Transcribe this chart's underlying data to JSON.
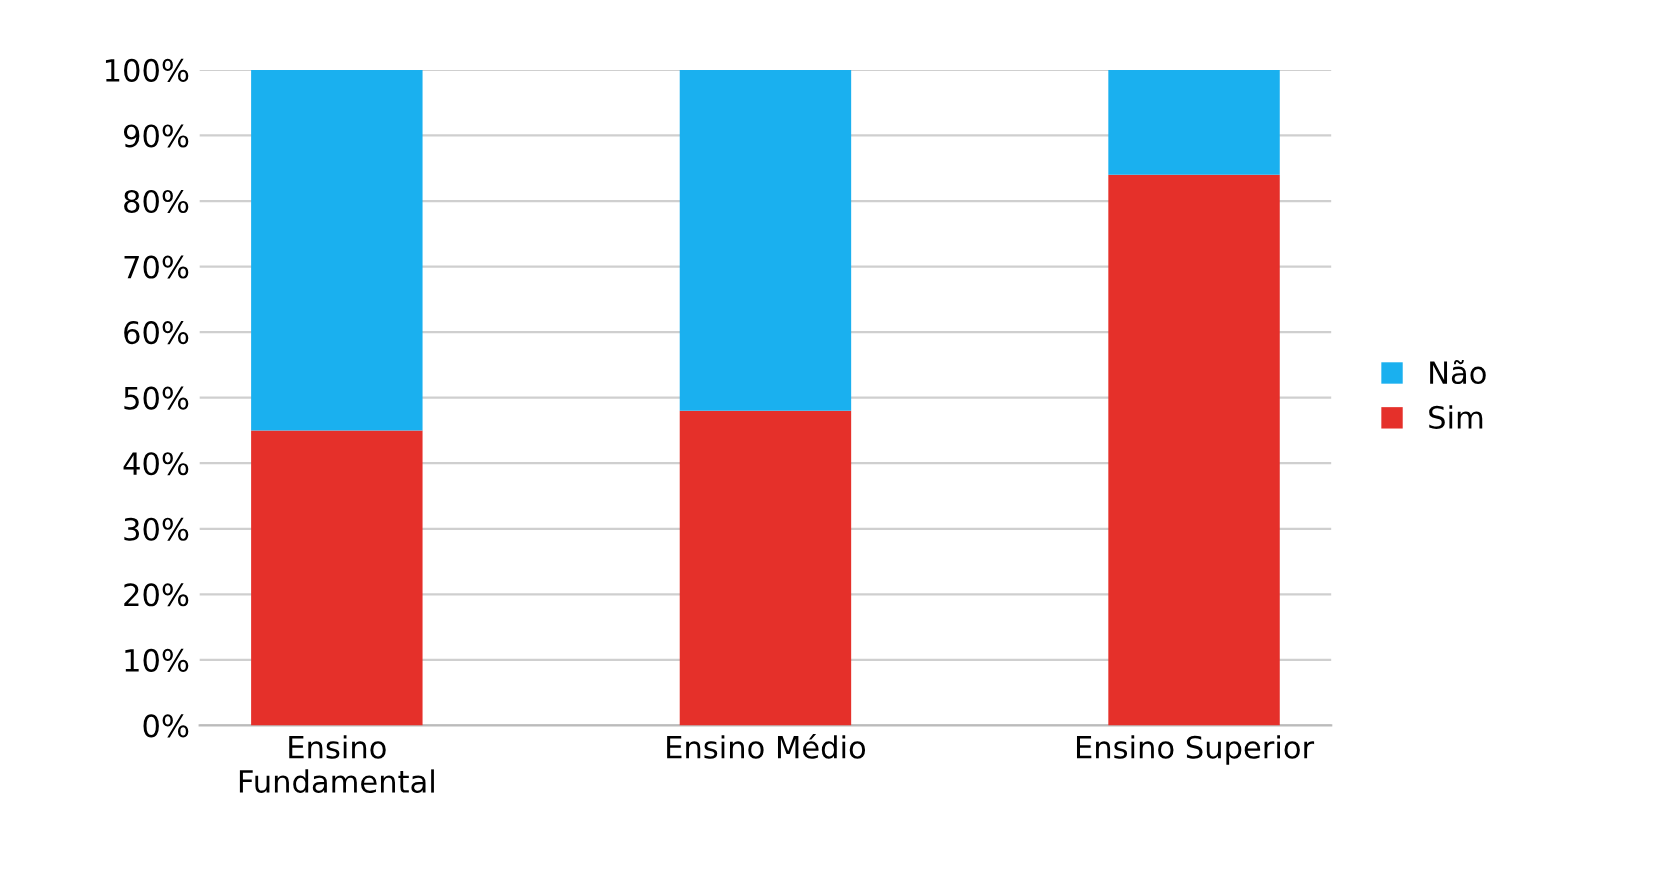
{
  "chart_data": {
    "type": "bar",
    "stacked": true,
    "categories": [
      "Ensino\nFundamental",
      "Ensino Médio",
      "Ensino Superior"
    ],
    "series": [
      {
        "name": "Sim",
        "color": "#e5302a",
        "values": [
          45,
          48,
          84
        ]
      },
      {
        "name": "Não",
        "color": "#1ab0ef",
        "values": [
          55,
          52,
          16
        ]
      }
    ],
    "ylim": [
      0,
      100
    ],
    "yticks": [
      {
        "value": 0,
        "label": "0%"
      },
      {
        "value": 10,
        "label": "10%"
      },
      {
        "value": 20,
        "label": "20%"
      },
      {
        "value": 30,
        "label": "30%"
      },
      {
        "value": 40,
        "label": "40%"
      },
      {
        "value": 50,
        "label": "50%"
      },
      {
        "value": 60,
        "label": "60%"
      },
      {
        "value": 70,
        "label": "70%"
      },
      {
        "value": 80,
        "label": "80%"
      },
      {
        "value": 90,
        "label": "90%"
      },
      {
        "value": 100,
        "label": "100%"
      }
    ],
    "grid": "y",
    "legend": "right"
  }
}
